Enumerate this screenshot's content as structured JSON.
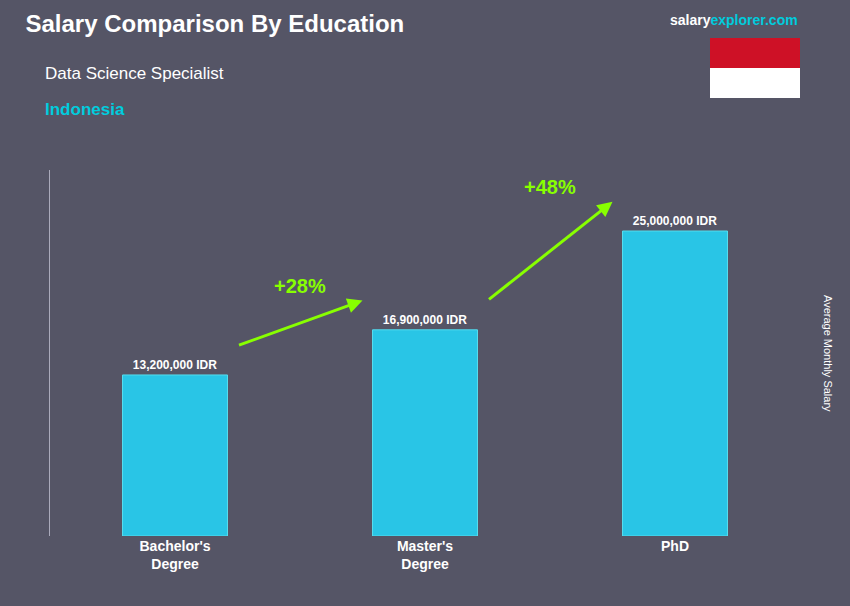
{
  "chart_data": {
    "type": "bar",
    "title": "Salary Comparison By Education",
    "subtitle": "Data Science Specialist",
    "subtitle2": "Indonesia",
    "source": [
      "salary",
      "explorer.com"
    ],
    "ylabel": "Average Monthly Salary",
    "categories": [
      "Bachelor's\nDegree",
      "Master's\nDegree",
      "PhD"
    ],
    "values": [
      13200000,
      16900000,
      25000000
    ],
    "value_labels": [
      "13,200,000 IDR",
      "16,900,000 IDR",
      "25,000,000 IDR"
    ],
    "data_labels": true,
    "annotations": [
      "+28%",
      "+48%"
    ],
    "color": "#29c5e6",
    "ylim": [
      0,
      30000000
    ],
    "grid": false,
    "tick_labels": "x"
  }
}
